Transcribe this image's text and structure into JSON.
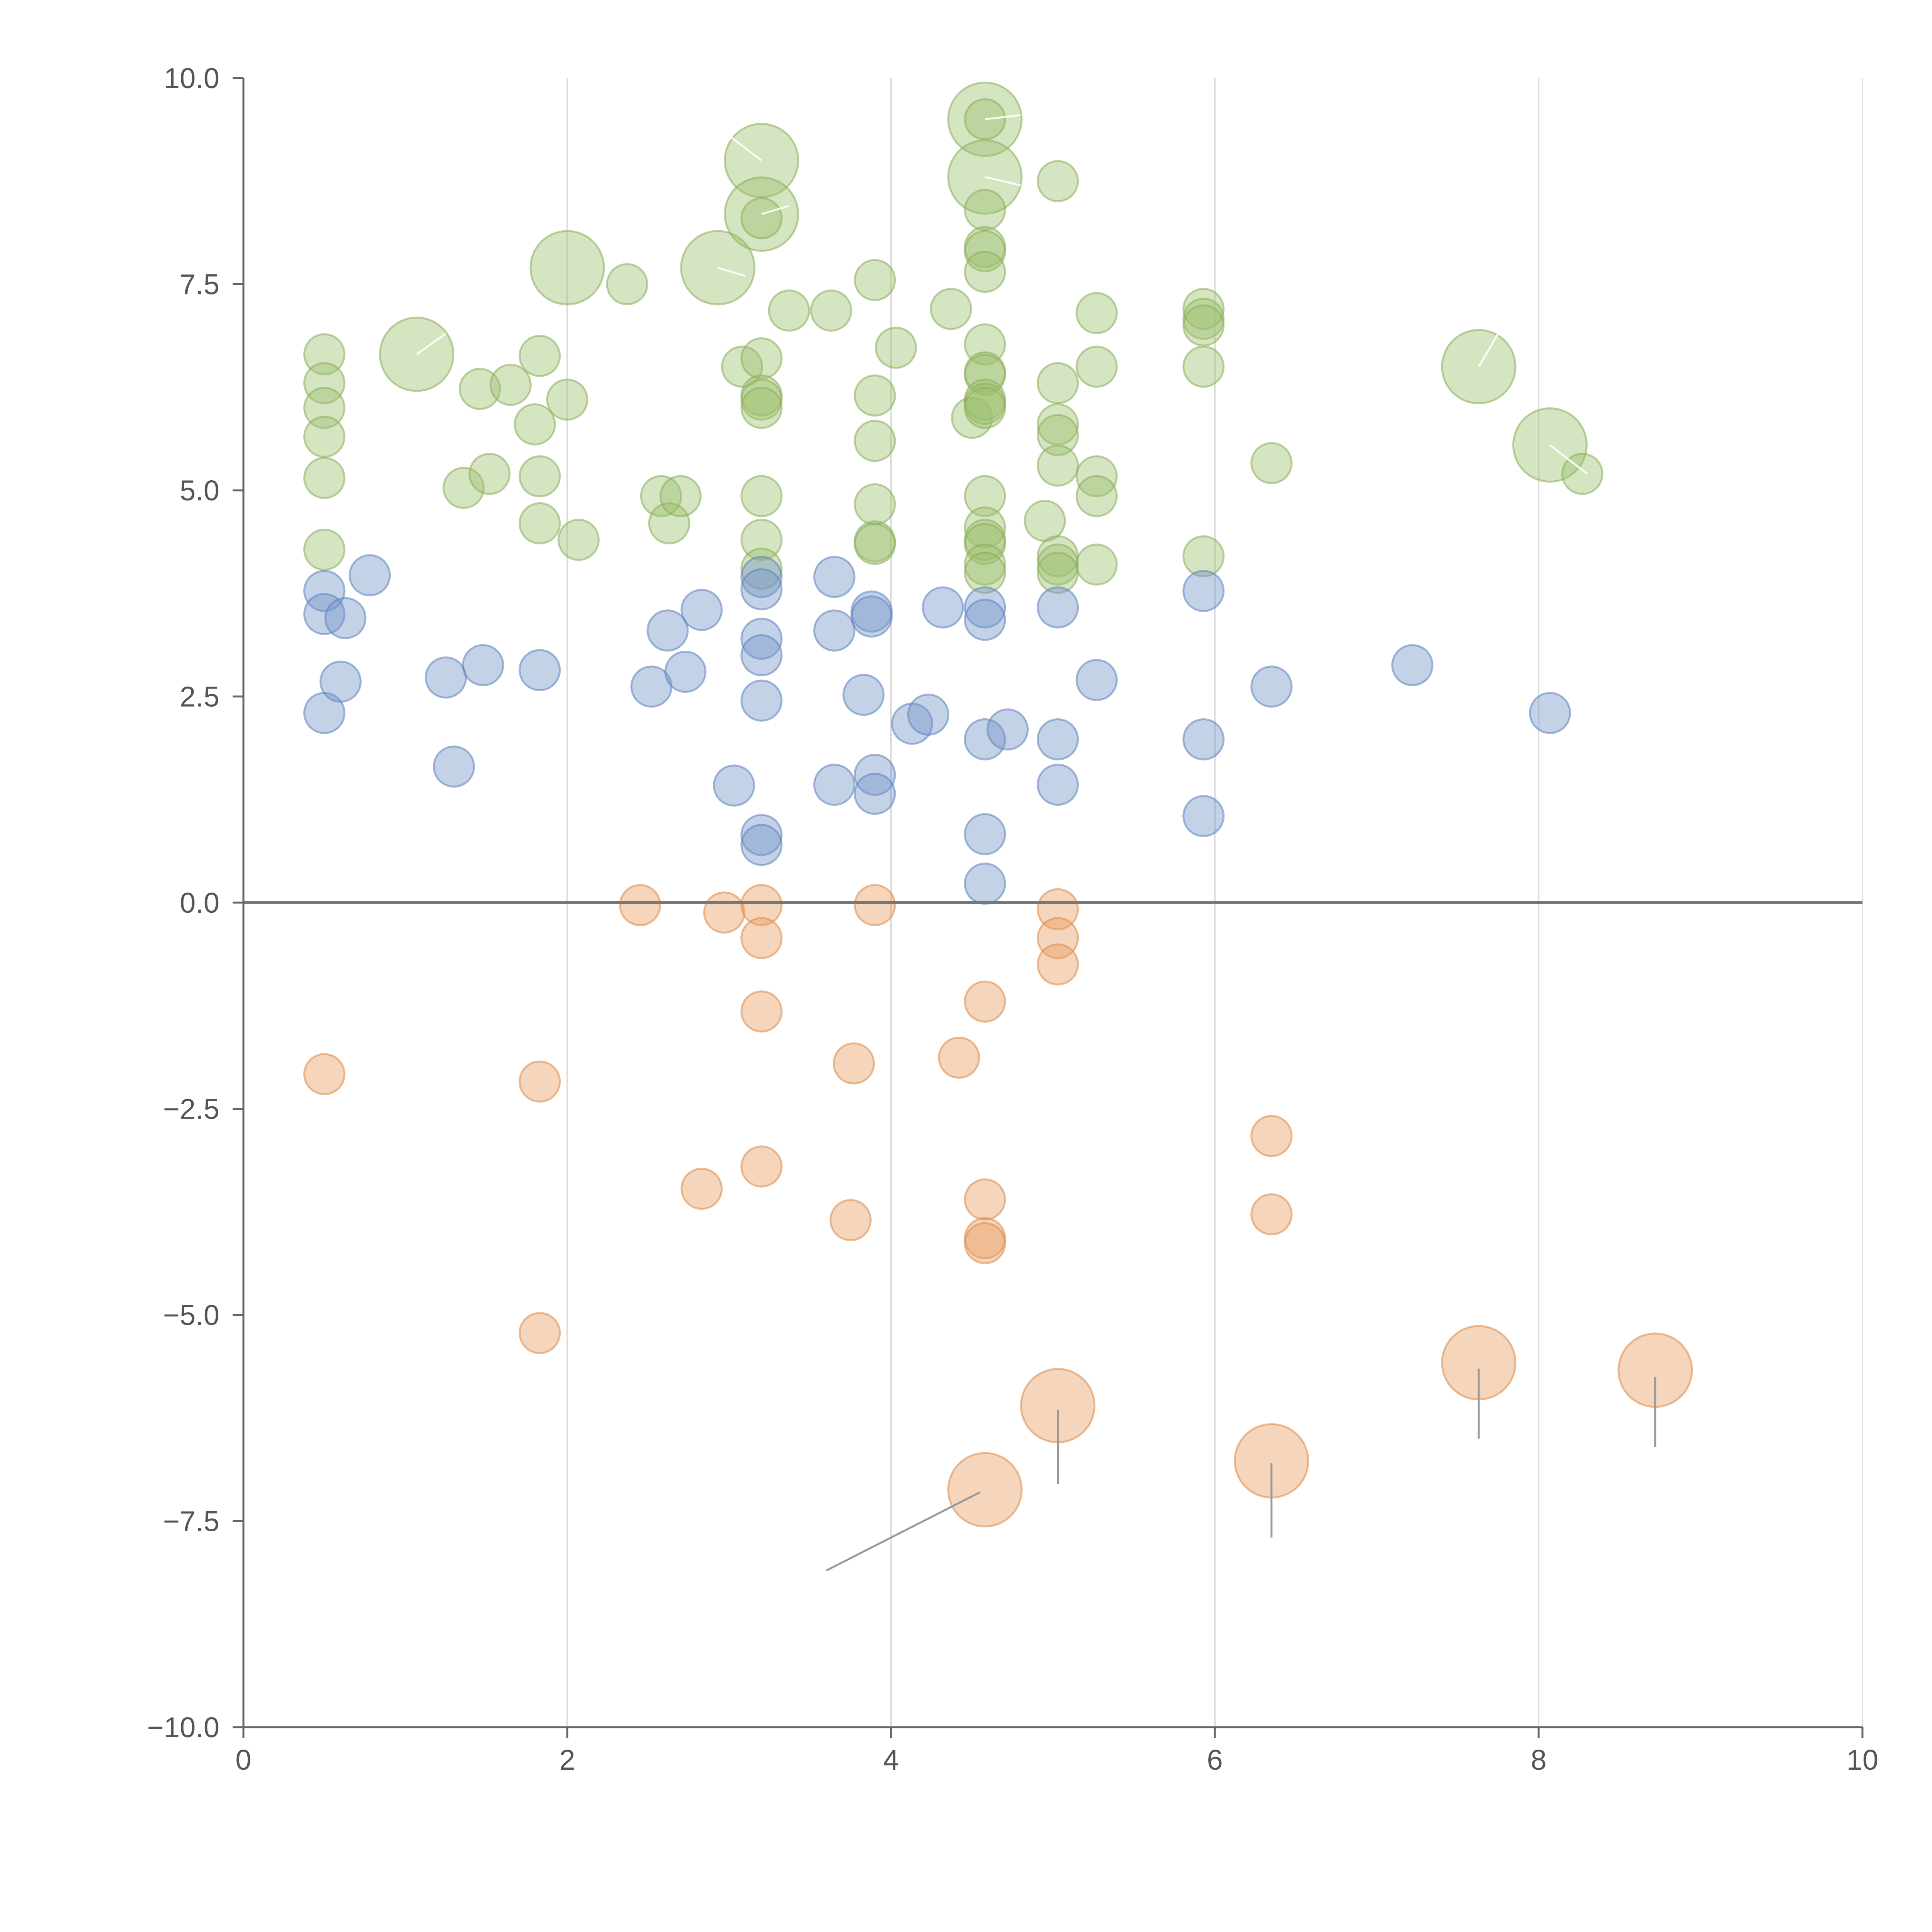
{
  "chart_data": {
    "type": "scatter",
    "title": "",
    "xlabel": "",
    "ylabel": "",
    "xlim": [
      0,
      10
    ],
    "ylim": [
      -10,
      10
    ],
    "x_ticks": [
      0,
      2,
      4,
      6,
      8,
      10
    ],
    "x_tick_labels": [
      "0",
      "2",
      "4",
      "6",
      "8",
      "10"
    ],
    "y_ticks": [
      10,
      7.5,
      5,
      2.5,
      0,
      -2.5,
      -5,
      -7.5,
      -10
    ],
    "y_tick_labels": [
      "10.0",
      "7.5",
      "5.0",
      "2.5",
      "0.0",
      "−2.5",
      "−5.0",
      "−7.5",
      "−10.0"
    ],
    "grid": "vertical",
    "zero_line": true,
    "colors": {
      "green": "#9cbf6b",
      "green_stroke": "#8aad5a",
      "blue": "#7294c9",
      "blue_stroke": "#5f82bb",
      "orange": "#e69a5c",
      "orange_stroke": "#dd8a48"
    },
    "series": [
      {
        "name": "green",
        "color_key": "green",
        "points": [
          [
            0.5,
            6.65,
            1
          ],
          [
            0.5,
            6.3,
            1
          ],
          [
            0.5,
            6.0,
            1
          ],
          [
            0.5,
            5.65,
            1
          ],
          [
            0.5,
            5.15,
            1
          ],
          [
            0.5,
            4.28,
            1
          ],
          [
            1.07,
            6.65,
            2.5
          ],
          [
            1.36,
            5.03,
            1
          ],
          [
            1.46,
            6.23,
            1
          ],
          [
            1.52,
            5.2,
            1
          ],
          [
            1.65,
            6.28,
            1
          ],
          [
            1.8,
            5.8,
            1
          ],
          [
            1.83,
            6.63,
            1
          ],
          [
            1.83,
            5.17,
            1
          ],
          [
            1.83,
            4.6,
            1
          ],
          [
            2.0,
            6.1,
            1
          ],
          [
            2.0,
            7.7,
            2.5
          ],
          [
            2.07,
            4.4,
            1
          ],
          [
            2.37,
            7.5,
            1
          ],
          [
            2.58,
            4.93,
            1
          ],
          [
            2.63,
            4.6,
            1
          ],
          [
            2.7,
            4.93,
            1
          ],
          [
            2.93,
            7.7,
            2.5
          ],
          [
            3.08,
            6.5,
            1
          ],
          [
            3.2,
            9.0,
            2.5
          ],
          [
            3.2,
            8.35,
            2.5
          ],
          [
            3.2,
            8.3,
            1
          ],
          [
            3.2,
            6.6,
            1
          ],
          [
            3.2,
            6.15,
            1
          ],
          [
            3.2,
            6.1,
            1
          ],
          [
            3.2,
            6.0,
            1
          ],
          [
            3.2,
            4.93,
            1
          ],
          [
            3.2,
            4.4,
            1
          ],
          [
            3.2,
            4.05,
            1
          ],
          [
            3.37,
            7.18,
            1
          ],
          [
            3.63,
            7.18,
            1
          ],
          [
            3.9,
            7.55,
            1
          ],
          [
            3.9,
            6.15,
            1
          ],
          [
            3.9,
            5.6,
            1
          ],
          [
            3.9,
            4.83,
            1
          ],
          [
            3.9,
            4.38,
            1
          ],
          [
            3.9,
            4.35,
            1
          ],
          [
            4.03,
            6.73,
            1
          ],
          [
            4.37,
            7.2,
            1
          ],
          [
            4.5,
            5.88,
            1
          ],
          [
            4.58,
            9.5,
            2.5
          ],
          [
            4.58,
            9.5,
            1
          ],
          [
            4.58,
            8.8,
            2.5
          ],
          [
            4.58,
            8.4,
            1
          ],
          [
            4.58,
            7.95,
            1
          ],
          [
            4.58,
            7.9,
            1
          ],
          [
            4.58,
            7.65,
            1
          ],
          [
            4.58,
            6.77,
            1
          ],
          [
            4.58,
            6.43,
            1
          ],
          [
            4.58,
            6.4,
            1
          ],
          [
            4.58,
            6.1,
            1
          ],
          [
            4.58,
            6.05,
            1
          ],
          [
            4.58,
            6.0,
            1
          ],
          [
            4.58,
            4.93,
            1
          ],
          [
            4.58,
            4.55,
            1
          ],
          [
            4.58,
            4.4,
            1
          ],
          [
            4.58,
            4.35,
            1
          ],
          [
            4.58,
            4.1,
            1
          ],
          [
            4.58,
            4.0,
            1
          ],
          [
            4.95,
            4.63,
            1
          ],
          [
            5.03,
            8.75,
            1
          ],
          [
            5.03,
            6.3,
            1
          ],
          [
            5.03,
            5.8,
            1
          ],
          [
            5.03,
            5.67,
            1
          ],
          [
            5.03,
            5.3,
            1
          ],
          [
            5.03,
            4.2,
            1
          ],
          [
            5.03,
            4.1,
            1
          ],
          [
            5.03,
            4.0,
            1
          ],
          [
            5.27,
            7.15,
            1
          ],
          [
            5.27,
            6.5,
            1
          ],
          [
            5.27,
            5.17,
            1
          ],
          [
            5.27,
            4.93,
            1
          ],
          [
            5.27,
            4.1,
            1
          ],
          [
            5.93,
            7.2,
            1
          ],
          [
            5.93,
            7.08,
            1
          ],
          [
            5.93,
            7.0,
            1
          ],
          [
            5.93,
            6.5,
            1
          ],
          [
            5.93,
            4.2,
            1
          ],
          [
            6.35,
            5.33,
            1
          ],
          [
            7.63,
            6.5,
            2.5
          ],
          [
            8.07,
            5.55,
            2.5
          ],
          [
            8.27,
            5.2,
            1
          ]
        ]
      },
      {
        "name": "blue",
        "color_key": "blue",
        "points": [
          [
            0.5,
            3.78,
            1
          ],
          [
            0.5,
            3.5,
            1
          ],
          [
            0.5,
            2.3,
            1
          ],
          [
            0.63,
            3.45,
            1
          ],
          [
            0.6,
            2.68,
            1
          ],
          [
            0.78,
            3.97,
            1
          ],
          [
            1.25,
            2.73,
            1
          ],
          [
            1.3,
            1.65,
            1
          ],
          [
            1.48,
            2.88,
            1
          ],
          [
            1.83,
            2.82,
            1
          ],
          [
            2.52,
            2.62,
            1
          ],
          [
            2.62,
            3.3,
            1
          ],
          [
            2.73,
            2.8,
            1
          ],
          [
            2.83,
            3.55,
            1
          ],
          [
            3.03,
            1.42,
            1
          ],
          [
            3.2,
            3.95,
            1
          ],
          [
            3.2,
            3.8,
            1
          ],
          [
            3.2,
            3.2,
            1
          ],
          [
            3.2,
            3.0,
            1
          ],
          [
            3.2,
            2.45,
            1
          ],
          [
            3.2,
            0.82,
            1
          ],
          [
            3.2,
            0.7,
            1
          ],
          [
            3.65,
            3.95,
            1
          ],
          [
            3.65,
            3.3,
            1
          ],
          [
            3.65,
            1.43,
            1
          ],
          [
            3.83,
            2.52,
            1
          ],
          [
            3.88,
            3.53,
            1
          ],
          [
            3.88,
            3.47,
            1
          ],
          [
            3.9,
            1.55,
            1
          ],
          [
            3.9,
            1.32,
            1
          ],
          [
            4.13,
            2.17,
            1
          ],
          [
            4.23,
            2.28,
            1
          ],
          [
            4.32,
            3.58,
            1
          ],
          [
            4.58,
            3.58,
            1
          ],
          [
            4.58,
            3.43,
            1
          ],
          [
            4.58,
            1.98,
            1
          ],
          [
            4.58,
            0.83,
            1
          ],
          [
            4.58,
            0.23,
            1
          ],
          [
            4.72,
            2.1,
            1
          ],
          [
            5.03,
            3.58,
            1
          ],
          [
            5.03,
            1.98,
            1
          ],
          [
            5.03,
            1.43,
            1
          ],
          [
            5.27,
            2.7,
            1
          ],
          [
            5.93,
            3.78,
            1
          ],
          [
            5.93,
            1.98,
            1
          ],
          [
            5.93,
            1.05,
            1
          ],
          [
            6.35,
            2.62,
            1
          ],
          [
            7.22,
            2.88,
            1
          ],
          [
            8.07,
            2.3,
            1
          ]
        ]
      },
      {
        "name": "orange",
        "color_key": "orange",
        "points": [
          [
            0.5,
            -2.08,
            1
          ],
          [
            1.83,
            -2.17,
            1
          ],
          [
            1.83,
            -5.22,
            1
          ],
          [
            2.45,
            -0.03,
            1
          ],
          [
            2.83,
            -3.47,
            1
          ],
          [
            2.97,
            -0.12,
            1
          ],
          [
            3.2,
            -0.03,
            1
          ],
          [
            3.2,
            -0.43,
            1
          ],
          [
            3.2,
            -1.32,
            1
          ],
          [
            3.2,
            -3.2,
            1
          ],
          [
            3.75,
            -3.85,
            1
          ],
          [
            3.77,
            -1.95,
            1
          ],
          [
            3.9,
            -0.03,
            1
          ],
          [
            4.42,
            -1.88,
            1
          ],
          [
            4.58,
            -1.2,
            1
          ],
          [
            4.58,
            -3.6,
            1
          ],
          [
            4.58,
            -4.07,
            1
          ],
          [
            4.58,
            -4.13,
            1
          ],
          [
            4.58,
            -7.12,
            2.5
          ],
          [
            5.03,
            -0.08,
            1
          ],
          [
            5.03,
            -0.43,
            1
          ],
          [
            5.03,
            -0.75,
            1
          ],
          [
            5.03,
            -6.1,
            2.5
          ],
          [
            6.35,
            -2.83,
            1
          ],
          [
            6.35,
            -3.78,
            1
          ],
          [
            6.35,
            -6.77,
            2.5
          ],
          [
            7.63,
            -5.58,
            2.5
          ],
          [
            8.72,
            -5.67,
            2.5
          ]
        ]
      }
    ],
    "leader_lines": [
      {
        "series": "orange",
        "from": [
          4.55,
          -7.15
        ],
        "to": [
          3.6,
          -8.1
        ]
      },
      {
        "series": "orange",
        "from": [
          5.03,
          -6.15
        ],
        "to": [
          5.03,
          -7.05
        ]
      },
      {
        "series": "orange",
        "from": [
          6.35,
          -6.8
        ],
        "to": [
          6.35,
          -7.7
        ]
      },
      {
        "series": "orange",
        "from": [
          7.63,
          -5.65
        ],
        "to": [
          7.63,
          -6.5
        ]
      },
      {
        "series": "orange",
        "from": [
          8.72,
          -5.75
        ],
        "to": [
          8.72,
          -6.6
        ]
      },
      {
        "series": "green",
        "from": [
          1.07,
          6.65
        ],
        "to": [
          1.25,
          6.9
        ]
      },
      {
        "series": "green",
        "from": [
          2.93,
          7.7
        ],
        "to": [
          3.1,
          7.6
        ]
      },
      {
        "series": "green",
        "from": [
          3.2,
          8.35
        ],
        "to": [
          3.37,
          8.45
        ]
      },
      {
        "series": "green",
        "from": [
          3.2,
          9.0
        ],
        "to": [
          3.0,
          9.3
        ]
      },
      {
        "series": "green",
        "from": [
          4.58,
          9.5
        ],
        "to": [
          4.8,
          9.55
        ]
      },
      {
        "series": "green",
        "from": [
          4.58,
          8.8
        ],
        "to": [
          4.8,
          8.7
        ]
      },
      {
        "series": "green",
        "from": [
          7.63,
          6.5
        ],
        "to": [
          7.75,
          6.9
        ]
      },
      {
        "series": "green",
        "from": [
          8.07,
          5.55
        ],
        "to": [
          8.3,
          5.2
        ]
      }
    ]
  }
}
